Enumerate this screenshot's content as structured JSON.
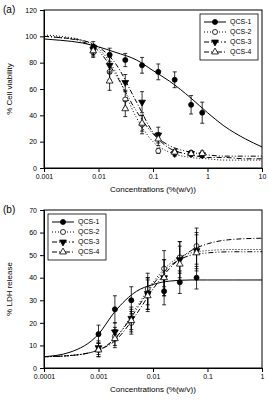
{
  "chart_data": [
    {
      "type": "scatter",
      "title": "(a)",
      "x_label": "Concentrations (%(w/v))",
      "y_label": "% Cell viability",
      "log": "x",
      "legend": "upper right",
      "xlim": [
        0.001,
        10
      ],
      "xticks": [
        0.001,
        0.01,
        0.1,
        1,
        10
      ],
      "ylim": [
        0,
        120
      ],
      "yticks": [
        0,
        20,
        40,
        60,
        80,
        100,
        120
      ],
      "x": [
        0.008,
        0.016,
        0.031,
        0.063,
        0.125,
        0.25,
        0.5,
        0.8
      ],
      "fit_x": [
        0.001,
        0.002,
        0.005,
        0.01,
        0.02,
        0.05,
        0.1,
        0.2,
        0.5,
        1,
        2,
        5,
        10
      ],
      "series": [
        {
          "name": "QCS-1",
          "color": "#000000",
          "marker": "circle",
          "line_style": "solid",
          "values": [
            92,
            86,
            82,
            78,
            73,
            67,
            48,
            42
          ],
          "errors": [
            4,
            5,
            5,
            6,
            6,
            6,
            7,
            8
          ],
          "fit_values": [
            98,
            97,
            95,
            92,
            88,
            82,
            74,
            66,
            53,
            42,
            32,
            22,
            16
          ]
        },
        {
          "name": "QCS-2",
          "color": "#000000",
          "marker": "circle-open",
          "line_style": "dotted",
          "values": [
            88,
            73,
            52,
            33,
            13,
            12,
            11,
            10
          ],
          "errors": [
            4,
            6,
            6,
            7,
            2,
            2,
            2,
            2
          ],
          "fit_values": [
            101,
            100,
            97,
            91,
            74,
            38,
            20,
            12,
            8,
            7,
            6,
            6,
            6
          ]
        },
        {
          "name": "QCS-3",
          "color": "#000000",
          "marker": "triangle-down",
          "line_style": "dashdot",
          "values": [
            90,
            78,
            65,
            50,
            25,
            11,
            11,
            10
          ],
          "errors": [
            4,
            6,
            6,
            8,
            6,
            2,
            2,
            2
          ],
          "fit_values": [
            100,
            99,
            97,
            92,
            80,
            50,
            27,
            15,
            10,
            8,
            8,
            7,
            7
          ]
        },
        {
          "name": "QCS-4",
          "color": "#000000",
          "marker": "triangle-open",
          "line_style": "dashdotdot",
          "values": [
            89,
            66,
            45,
            34,
            22,
            12,
            11,
            11
          ],
          "errors": [
            4,
            7,
            6,
            6,
            5,
            2,
            2,
            2
          ],
          "fit_values": [
            100,
            99,
            96,
            89,
            72,
            43,
            26,
            17,
            12,
            10,
            9,
            9,
            9
          ]
        }
      ]
    },
    {
      "type": "scatter",
      "title": "(b)",
      "x_label": "Concentrations (%(w/v))",
      "y_label": "% LDH release",
      "log": "x",
      "legend": "upper left",
      "xlim": [
        0.0001,
        1
      ],
      "xticks": [
        0.0001,
        0.001,
        0.01,
        0.1,
        1
      ],
      "ylim": [
        0,
        70
      ],
      "yticks": [
        0,
        10,
        20,
        30,
        40,
        50,
        60,
        70
      ],
      "x": [
        0.001,
        0.002,
        0.004,
        0.008,
        0.016,
        0.031,
        0.063
      ],
      "fit_x": [
        0.0001,
        0.0003,
        0.001,
        0.002,
        0.005,
        0.01,
        0.02,
        0.05,
        0.1,
        0.3,
        1
      ],
      "series": [
        {
          "name": "QCS-1",
          "color": "#000000",
          "marker": "circle",
          "line_style": "solid",
          "values": [
            15,
            26,
            30,
            33,
            34,
            38,
            40
          ],
          "errors": [
            4,
            6,
            6,
            7,
            6,
            5,
            5
          ],
          "fit_values": [
            5,
            7,
            15,
            25,
            34,
            37,
            38.5,
            39,
            39,
            39,
            39
          ]
        },
        {
          "name": "QCS-2",
          "color": "#000000",
          "marker": "circle-open",
          "line_style": "dotted",
          "values": [
            8,
            14,
            20,
            35,
            44,
            49,
            54
          ],
          "errors": [
            3,
            4,
            5,
            7,
            8,
            7,
            8
          ],
          "fit_values": [
            5,
            5.5,
            8,
            13,
            27,
            38,
            46,
            51,
            52,
            52.5,
            52.5
          ]
        },
        {
          "name": "QCS-3",
          "color": "#000000",
          "marker": "triangle-down",
          "line_style": "dashdot",
          "values": [
            9,
            16,
            22,
            33,
            40,
            48,
            52
          ],
          "errors": [
            3,
            4,
            5,
            7,
            8,
            8,
            8
          ],
          "fit_values": [
            5,
            5.5,
            8,
            12,
            24,
            35,
            44,
            52,
            55,
            57,
            57.5
          ]
        },
        {
          "name": "QCS-4",
          "color": "#000000",
          "marker": "triangle-open",
          "line_style": "dashdotdot",
          "values": [
            8,
            13,
            21,
            32,
            40,
            46,
            51
          ],
          "errors": [
            3,
            4,
            5,
            7,
            8,
            8,
            8
          ],
          "fit_values": [
            5,
            5.5,
            8,
            13,
            26,
            37,
            45,
            50,
            51,
            51.5,
            51.5
          ]
        }
      ]
    }
  ]
}
